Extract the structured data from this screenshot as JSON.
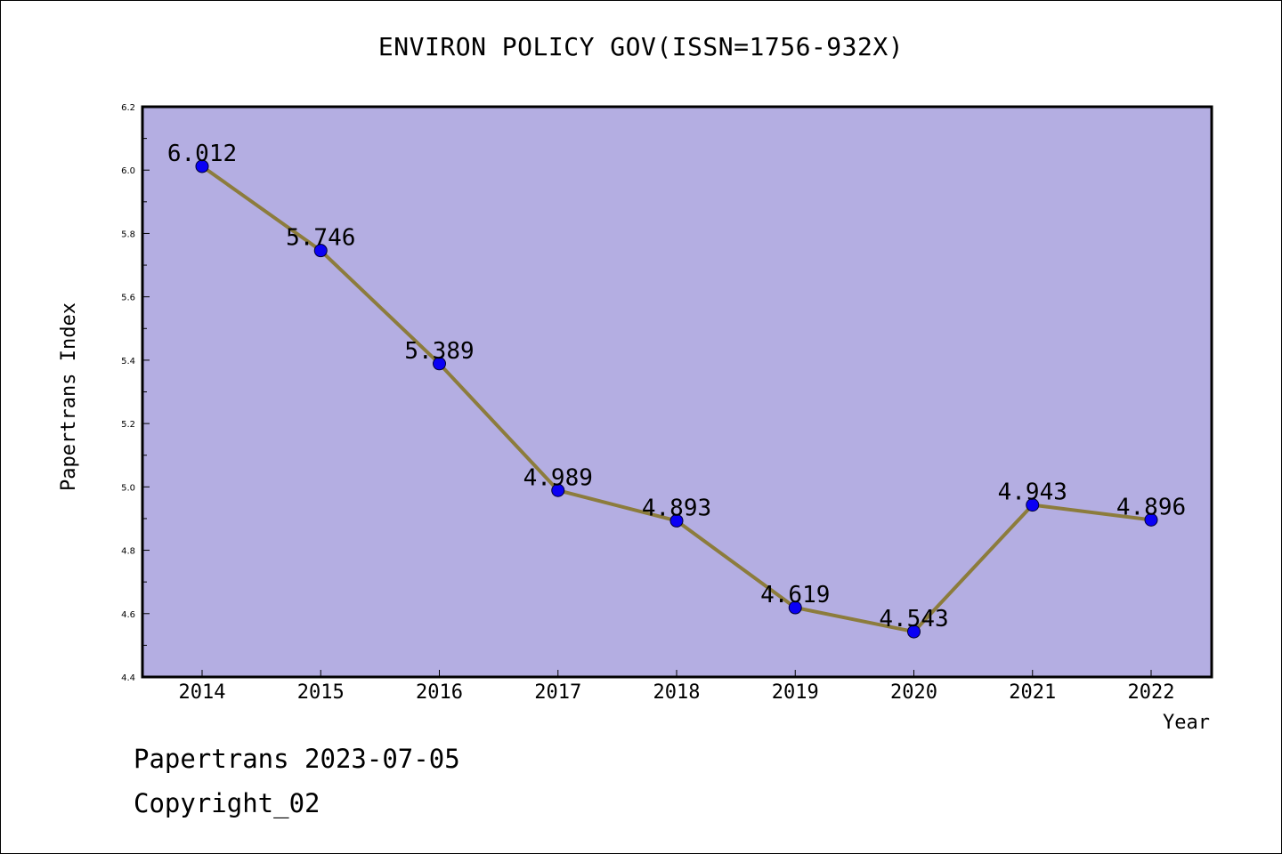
{
  "colors": {
    "plot_background": "#b4aee2",
    "line": "#8c7c3c",
    "marker": "#0a00f5",
    "axis": "#000000"
  },
  "footer": {
    "line1": "Papertrans 2023-07-05",
    "line2": "Copyright_02"
  },
  "chart_data": {
    "type": "line",
    "title": "ENVIRON POLICY GOV(ISSN=1756-932X)",
    "xlabel": "Year",
    "ylabel": "Papertrans Index",
    "categories": [
      "2014",
      "2015",
      "2016",
      "2017",
      "2018",
      "2019",
      "2020",
      "2021",
      "2022"
    ],
    "values": [
      6.012,
      5.746,
      5.389,
      4.989,
      4.893,
      4.619,
      4.543,
      4.943,
      4.896
    ],
    "data_labels": [
      "6.012",
      "5.746",
      "5.389",
      "4.989",
      "4.893",
      "4.619",
      "4.543",
      "4.943",
      "4.896"
    ],
    "ylim": [
      4.4,
      6.2
    ],
    "yticks": [
      "4.4",
      "4.6",
      "4.8",
      "5.0",
      "5.2",
      "5.4",
      "5.6",
      "5.8",
      "6.0",
      "6.2"
    ],
    "grid": false,
    "legend": "none"
  }
}
